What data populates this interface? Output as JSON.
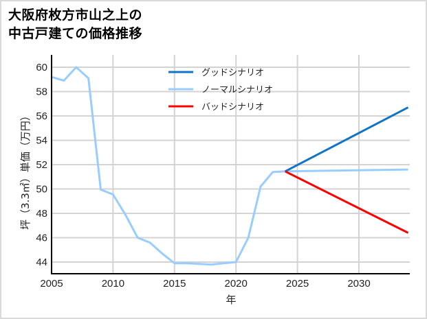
{
  "title": {
    "line1": "大阪府枚方市山之上の",
    "line2": "中古戸建ての価格推移"
  },
  "axes": {
    "xlabel": "年",
    "ylabel": "坪（3.3㎡）単価（万円）"
  },
  "legend": [
    {
      "label": "グッドシナリオ",
      "color": "#0f73c6"
    },
    {
      "label": "ノーマルシナリオ",
      "color": "#99ccff"
    },
    {
      "label": "バッドシナリオ",
      "color": "#ff0000"
    }
  ],
  "colors": {
    "grid": "#d3d3d3",
    "axis": "#000000",
    "border": "#d9d9d9"
  },
  "chart_data": {
    "type": "line",
    "title": "大阪府枚方市山之上の中古戸建ての価格推移",
    "xlabel": "年",
    "ylabel": "坪（3.3㎡）単価（万円）",
    "xlim": [
      2005,
      2034
    ],
    "ylim": [
      43,
      60.8
    ],
    "xticks": [
      2005,
      2010,
      2015,
      2020,
      2025,
      2030
    ],
    "yticks": [
      44,
      46,
      48,
      50,
      52,
      54,
      56,
      58,
      60
    ],
    "grid": true,
    "legend_position": "upper center",
    "series": [
      {
        "name": "ノーマルシナリオ",
        "color": "#99ccff",
        "x": [
          2005,
          2006,
          2007,
          2008,
          2009,
          2010,
          2011,
          2012,
          2013,
          2014,
          2015,
          2016,
          2017,
          2018,
          2019,
          2020,
          2021,
          2022,
          2023,
          2024,
          2034
        ],
        "values": [
          59.2,
          58.9,
          60.0,
          59.1,
          49.95,
          49.55,
          47.9,
          46.0,
          45.6,
          44.7,
          43.9,
          43.9,
          43.85,
          43.8,
          43.9,
          44.0,
          46.0,
          50.2,
          51.4,
          51.45,
          51.6
        ]
      },
      {
        "name": "グッドシナリオ",
        "color": "#0f73c6",
        "x": [
          2024,
          2034
        ],
        "values": [
          51.45,
          56.7
        ]
      },
      {
        "name": "バッドシナリオ",
        "color": "#ff0000",
        "x": [
          2024,
          2034
        ],
        "values": [
          51.45,
          46.4
        ]
      }
    ]
  }
}
